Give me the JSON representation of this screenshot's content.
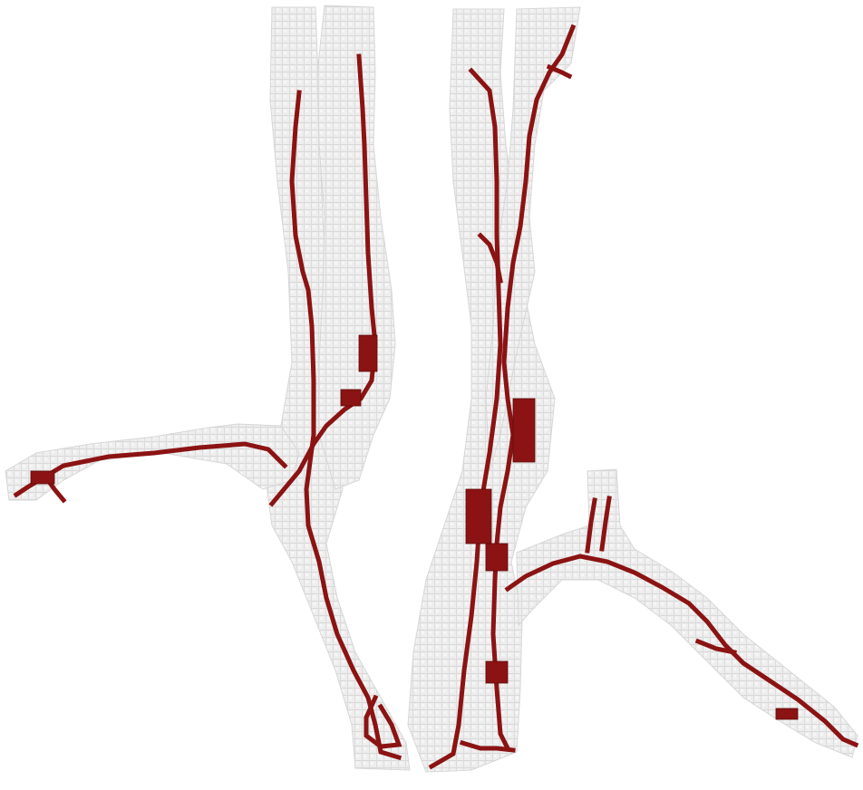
{
  "scene": {
    "description_name": "voxel-vessel-tree-render",
    "colors": {
      "background": "#ffffff",
      "vessel_shell": "#dcdcdc",
      "vessel_shell_shadow": "#c9c9c9",
      "centerline": "#8b1313",
      "centerline_dark": "#5e0a0a",
      "centerline_light": "#c23030"
    }
  }
}
